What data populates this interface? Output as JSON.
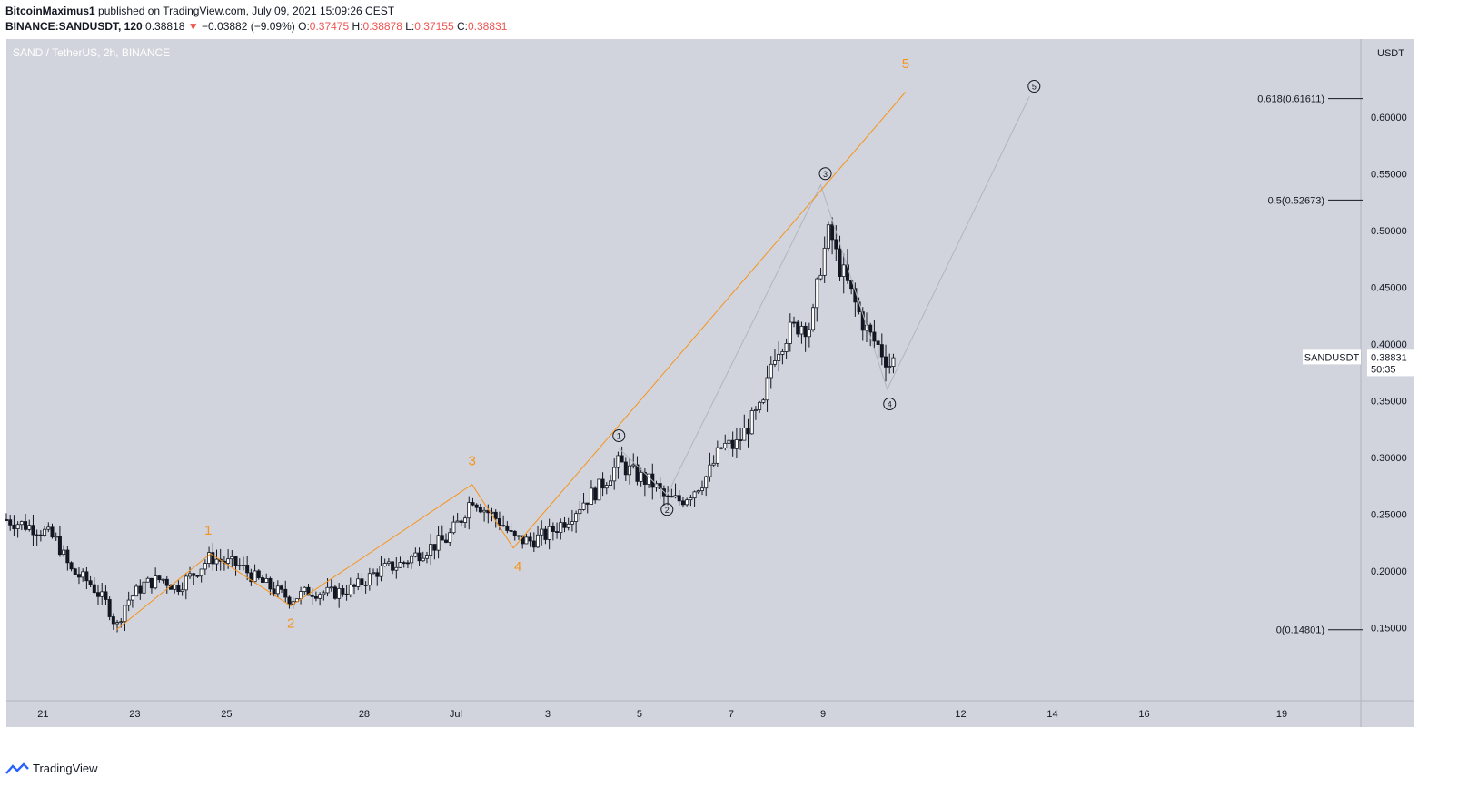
{
  "header": {
    "author": "BitcoinMaximus1",
    "published": "published on TradingView.com, July 09, 2021 15:09:26 CEST",
    "symbol": "BINANCE:SANDUSDT, 120",
    "last": "0.38818",
    "change_arrow": "▼",
    "change": "−0.03882 (−9.09%)",
    "o_label": "O:",
    "o": "0.37475",
    "h_label": "H:",
    "h": "0.38878",
    "l_label": "L:",
    "l": "0.37155",
    "c_label": "C:",
    "c": "0.38831"
  },
  "footer": {
    "brand": "TradingView"
  },
  "colors": {
    "background": "#d1d4dc",
    "orange": "#f7931a",
    "axis_text": "#131722"
  },
  "chart_data": {
    "type": "candlestick",
    "title": "SAND / TetherUS, 2h, BINANCE",
    "currency": "USDT",
    "ylim": [
      0.095,
      0.655
    ],
    "y_ticks": [
      "0.15000",
      "0.20000",
      "0.25000",
      "0.30000",
      "0.35000",
      "0.40000",
      "0.45000",
      "0.50000",
      "0.55000",
      "0.60000"
    ],
    "x_ticks": [
      {
        "label": "21",
        "t": 1.0
      },
      {
        "label": "23",
        "t": 3.0
      },
      {
        "label": "25",
        "t": 5.0
      },
      {
        "label": "28",
        "t": 8.0
      },
      {
        "label": "Jul",
        "t": 10.0
      },
      {
        "label": "3",
        "t": 12.0
      },
      {
        "label": "5",
        "t": 14.0
      },
      {
        "label": "7",
        "t": 16.0
      },
      {
        "label": "9",
        "t": 18.0
      },
      {
        "label": "12",
        "t": 21.0
      },
      {
        "label": "14",
        "t": 23.0
      },
      {
        "label": "16",
        "t": 25.0
      },
      {
        "label": "19",
        "t": 28.0
      }
    ],
    "xlim": [
      0.2,
      30.85
    ],
    "price_label": {
      "symbol": "SANDUSDT",
      "price": "0.38831",
      "countdown": "50:35",
      "value": 0.38831
    },
    "fib_levels": [
      {
        "label": "0.618(0.61611)",
        "value": 0.61611
      },
      {
        "label": "0.5(0.52673)",
        "value": 0.52673
      },
      {
        "label": "0(0.14801)",
        "value": 0.14801
      }
    ],
    "primary_wave": {
      "points": [
        [
          2.6,
          0.148
        ],
        [
          4.65,
          0.215
        ],
        [
          6.4,
          0.169
        ],
        [
          10.35,
          0.276
        ],
        [
          11.25,
          0.22
        ],
        [
          19.8,
          0.622
        ]
      ],
      "labels": [
        {
          "text": "1",
          "t": 4.6,
          "v": 0.232
        },
        {
          "text": "2",
          "t": 6.4,
          "v": 0.15
        },
        {
          "text": "3",
          "t": 10.35,
          "v": 0.293
        },
        {
          "text": "4",
          "t": 11.35,
          "v": 0.2
        },
        {
          "text": "5",
          "t": 19.8,
          "v": 0.643
        }
      ]
    },
    "sub_wave": {
      "points": [
        [
          13.55,
          0.308
        ],
        [
          14.6,
          0.267
        ],
        [
          17.95,
          0.54
        ],
        [
          19.4,
          0.36
        ],
        [
          22.5,
          0.618
        ]
      ],
      "labels": [
        {
          "text": "1",
          "t": 13.55,
          "v": 0.319
        },
        {
          "text": "2",
          "t": 14.6,
          "v": 0.254
        },
        {
          "text": "3",
          "t": 18.05,
          "v": 0.55
        },
        {
          "text": "4",
          "t": 19.45,
          "v": 0.347
        },
        {
          "text": "5",
          "t": 22.6,
          "v": 0.627
        }
      ]
    },
    "price_path": [
      [
        0.2,
        0.245
      ],
      [
        0.8,
        0.238
      ],
      [
        1.0,
        0.235
      ],
      [
        1.3,
        0.226
      ],
      [
        1.6,
        0.2
      ],
      [
        2.0,
        0.19
      ],
      [
        2.4,
        0.17
      ],
      [
        2.6,
        0.15
      ],
      [
        2.8,
        0.172
      ],
      [
        3.2,
        0.188
      ],
      [
        3.6,
        0.193
      ],
      [
        3.9,
        0.185
      ],
      [
        4.3,
        0.198
      ],
      [
        4.65,
        0.212
      ],
      [
        5.0,
        0.207
      ],
      [
        5.3,
        0.204
      ],
      [
        5.6,
        0.194
      ],
      [
        6.0,
        0.184
      ],
      [
        6.4,
        0.175
      ],
      [
        6.8,
        0.182
      ],
      [
        7.3,
        0.18
      ],
      [
        7.8,
        0.185
      ],
      [
        8.3,
        0.2
      ],
      [
        8.8,
        0.206
      ],
      [
        9.3,
        0.218
      ],
      [
        9.8,
        0.228
      ],
      [
        10.1,
        0.245
      ],
      [
        10.35,
        0.265
      ],
      [
        10.6,
        0.255
      ],
      [
        11.0,
        0.242
      ],
      [
        11.25,
        0.228
      ],
      [
        11.6,
        0.226
      ],
      [
        12.0,
        0.232
      ],
      [
        12.4,
        0.245
      ],
      [
        12.8,
        0.262
      ],
      [
        13.1,
        0.272
      ],
      [
        13.55,
        0.295
      ],
      [
        13.9,
        0.285
      ],
      [
        14.3,
        0.276
      ],
      [
        14.6,
        0.262
      ],
      [
        14.9,
        0.262
      ],
      [
        15.2,
        0.272
      ],
      [
        15.5,
        0.285
      ],
      [
        15.8,
        0.31
      ],
      [
        16.1,
        0.31
      ],
      [
        16.4,
        0.33
      ],
      [
        16.7,
        0.345
      ],
      [
        16.9,
        0.39
      ],
      [
        17.2,
        0.408
      ],
      [
        17.5,
        0.418
      ],
      [
        17.75,
        0.415
      ],
      [
        17.95,
        0.47
      ],
      [
        18.15,
        0.5
      ],
      [
        18.3,
        0.475
      ],
      [
        18.55,
        0.45
      ],
      [
        18.8,
        0.425
      ],
      [
        19.0,
        0.408
      ],
      [
        19.2,
        0.398
      ],
      [
        19.45,
        0.382
      ],
      [
        19.6,
        0.388
      ]
    ],
    "series_note": "Candles (2h) follow the price_path with small deterministic noise"
  }
}
